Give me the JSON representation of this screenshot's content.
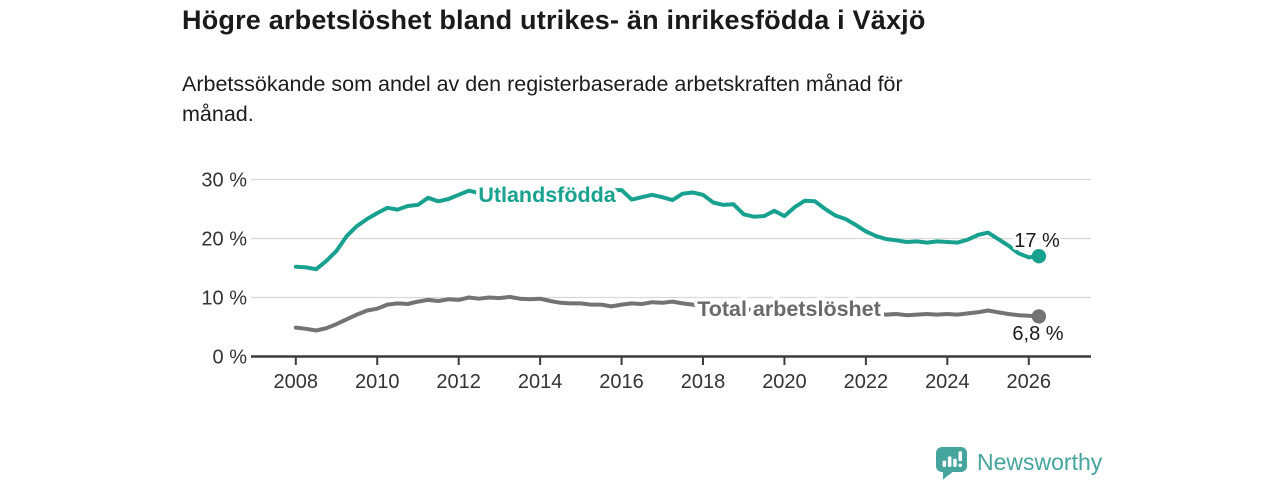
{
  "header": {
    "title": "Högre arbetslöshet bland utrikes- än inrikesfödda i Växjö",
    "subtitle": "Arbetssökande som andel av den registerbaserade arbetskraften månad för månad.",
    "subtitle_lines": [
      "Arbetssökande som andel av den registerbaserade arbetskraften månad för",
      "månad."
    ]
  },
  "footer": {
    "brand": "Newsworthy",
    "brand_color": "#45a49c",
    "logo_icon": "newsworthy-bar-chart-bubble-icon"
  },
  "chart_data": {
    "type": "line",
    "title": "Högre arbetslöshet bland utrikes- än inrikesfödda i Växjö",
    "subtitle": "Arbetssökande som andel av den registerbaserade arbetskraften månad för månad.",
    "grid": "horizontal",
    "x_start": 2008,
    "x_step_years": 0.25,
    "x_axis": {
      "ticks": [
        2008,
        2010,
        2012,
        2014,
        2016,
        2018,
        2020,
        2022,
        2024,
        2026
      ],
      "labels": [
        "2008",
        "2010",
        "2012",
        "2014",
        "2016",
        "2018",
        "2020",
        "2022",
        "2024",
        "2026"
      ]
    },
    "y_axis": {
      "ticks": [
        30,
        20,
        10,
        0
      ],
      "labels": [
        "30 %",
        "20 %",
        "10 %",
        "0 %"
      ],
      "range": [
        0,
        31
      ],
      "unit": "%"
    },
    "colors": {
      "grid": "#d9d9d9",
      "axis": "#3c3c3c",
      "tick_text": "#333333"
    },
    "series": [
      {
        "name": "Utlandsfödda",
        "inline_label": "Utlandsfödda",
        "color": "#18a18f",
        "end_label": "17 %",
        "end_value": 17.0,
        "values": [
          15.2,
          15.1,
          14.8,
          16.2,
          17.9,
          20.4,
          22.1,
          23.3,
          24.3,
          25.2,
          24.9,
          25.5,
          25.7,
          26.9,
          26.3,
          26.7,
          27.4,
          28.1,
          27.7,
          27.9,
          27.8,
          28.2,
          27.8,
          27.6,
          27.9,
          28.4,
          27.9,
          28.1,
          28.2,
          28.0,
          28.3,
          28.2,
          28.2,
          26.6,
          27.0,
          27.4,
          27.0,
          26.5,
          27.6,
          27.8,
          27.4,
          26.1,
          25.7,
          25.8,
          24.1,
          23.7,
          23.8,
          24.7,
          23.8,
          25.3,
          26.4,
          26.3,
          25.0,
          23.9,
          23.3,
          22.3,
          21.2,
          20.4,
          19.9,
          19.7,
          19.4,
          19.5,
          19.3,
          19.5,
          19.4,
          19.3,
          19.8,
          20.6,
          21.0,
          19.9,
          18.8,
          17.5,
          16.8,
          17.0
        ]
      },
      {
        "name": "Total arbetslöshet",
        "inline_label": "Total arbetslöshet",
        "color": "#737373",
        "label_color": "#696969",
        "end_label": "6,8 %",
        "end_value": 6.8,
        "values": [
          4.9,
          4.7,
          4.4,
          4.8,
          5.5,
          6.3,
          7.1,
          7.8,
          8.1,
          8.8,
          9.0,
          8.9,
          9.3,
          9.6,
          9.4,
          9.7,
          9.6,
          10.0,
          9.8,
          10.0,
          9.9,
          10.1,
          9.8,
          9.7,
          9.8,
          9.4,
          9.1,
          9.0,
          9.0,
          8.8,
          8.8,
          8.5,
          8.8,
          9.0,
          8.9,
          9.2,
          9.1,
          9.3,
          9.0,
          8.8,
          8.6,
          8.4,
          8.3,
          8.2,
          8.0,
          7.9,
          8.0,
          8.1,
          8.2,
          8.6,
          8.5,
          8.3,
          8.1,
          7.9,
          7.6,
          7.4,
          7.3,
          7.2,
          7.1,
          7.2,
          7.0,
          7.1,
          7.2,
          7.1,
          7.2,
          7.1,
          7.3,
          7.5,
          7.8,
          7.5,
          7.2,
          7.0,
          6.9,
          6.8
        ]
      }
    ]
  }
}
